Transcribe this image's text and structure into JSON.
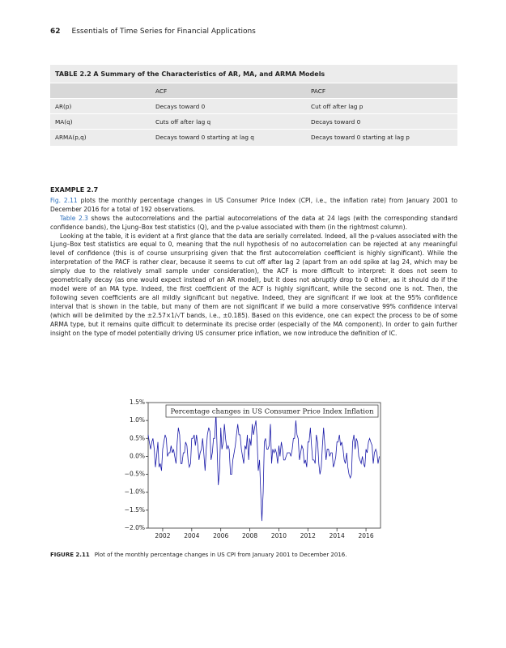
{
  "header": {
    "page_number": "62",
    "running_title": "Essentials of Time Series for Financial Applications"
  },
  "table": {
    "title": "TABLE 2.2 A Summary of the Characteristics of AR, MA, and ARMA Models",
    "columns": [
      "ACF",
      "PACF"
    ],
    "rows": [
      [
        "AR(p)",
        "Decays toward 0",
        "Cut off after lag p"
      ],
      [
        "MA(q)",
        "Cuts off after lag q",
        "Decays toward 0"
      ],
      [
        "ARMA(p,q)",
        "Decays toward 0 starting at lag q",
        "Decays toward 0 starting at lag p"
      ]
    ]
  },
  "example": {
    "heading": "EXAMPLE 2.7",
    "paragraphs": [
      {
        "link": "Fig. 2.11",
        "text": " plots the monthly percentage changes in US Consumer Price Index (CPI, i.e., the inflation rate) from January 2001 to December 2016 for a total of 192 observations."
      },
      {
        "link": "Table 2.3",
        "text": " shows the autocorrelations and the partial autocorrelations of the data at 24 lags (with the corresponding standard confidence bands), the Ljung–Box test statistics (Q), and the p-value associated with them (in the rightmost column)."
      },
      {
        "text": "Looking at the table, it is evident at a first glance that the data are serially correlated. Indeed, all the p-values associated with the Ljung–Box test statistics are equal to 0, meaning that the null hypothesis of no autocorrelation can be rejected at any meaningful level of confidence (this is of course unsurprising given that the first autocorrelation coefficient is highly significant). While the interpretation of the PACF is rather clear, because it seems to cut off after lag 2 (apart from an odd spike at lag 24, which may be simply due to the relatively small sample under consideration), the ACF is more difficult to interpret: it does not seem to geometrically decay (as one would expect instead of an AR model), but it does not abruptly drop to 0 either, as it should do if the model were of an MA type. Indeed, the first coefficient of the ACF is highly significant, while the second one is not. Then, the following seven coefficients are all mildly significant but negative. Indeed, they are significant if we look at the 95% confidence interval that is shown in the table, but many of them are not significant if we build a more conservative 99% confidence interval (which will be delimited by the ±2.57×1/√T bands, i.e., ±0.185). Based on this evidence, one can expect the process to be of some ARMA type, but it remains quite difficult to determinate its precise order (especially of the MA component). In order to gain further insight on the type of model potentially driving US consumer price inflation, we now introduce the definition of IC."
      }
    ]
  },
  "figure": {
    "label": "FIGURE 2.11",
    "caption": "Plot of the monthly percentage changes in US CPI from January 2001 to December 2016."
  },
  "chart_data": {
    "type": "line",
    "title": "Percentage changes in US Consumer Price Index Inflation",
    "color": "#1a1aa8",
    "x": [
      2001,
      2001.08,
      2001.17,
      2001.25,
      2001.33,
      2001.42,
      2001.5,
      2001.58,
      2001.67,
      2001.75,
      2001.83,
      2001.92,
      2002,
      2002.08,
      2002.17,
      2002.25,
      2002.33,
      2002.42,
      2002.5,
      2002.58,
      2002.67,
      2002.75,
      2002.83,
      2002.92,
      2003,
      2003.08,
      2003.17,
      2003.25,
      2003.33,
      2003.42,
      2003.5,
      2003.58,
      2003.67,
      2003.75,
      2003.83,
      2003.92,
      2004,
      2004.08,
      2004.17,
      2004.25,
      2004.33,
      2004.42,
      2004.5,
      2004.58,
      2004.67,
      2004.75,
      2004.83,
      2004.92,
      2005,
      2005.08,
      2005.17,
      2005.25,
      2005.33,
      2005.42,
      2005.5,
      2005.58,
      2005.67,
      2005.75,
      2005.83,
      2005.92,
      2006,
      2006.08,
      2006.17,
      2006.25,
      2006.33,
      2006.42,
      2006.5,
      2006.58,
      2006.67,
      2006.75,
      2006.83,
      2006.92,
      2007,
      2007.08,
      2007.17,
      2007.25,
      2007.33,
      2007.42,
      2007.5,
      2007.58,
      2007.67,
      2007.75,
      2007.83,
      2007.92,
      2008,
      2008.08,
      2008.17,
      2008.25,
      2008.33,
      2008.42,
      2008.5,
      2008.58,
      2008.67,
      2008.75,
      2008.83,
      2008.92,
      2009,
      2009.08,
      2009.17,
      2009.25,
      2009.33,
      2009.42,
      2009.5,
      2009.58,
      2009.67,
      2009.75,
      2009.83,
      2009.92,
      2010,
      2010.08,
      2010.17,
      2010.25,
      2010.33,
      2010.42,
      2010.5,
      2010.58,
      2010.67,
      2010.75,
      2010.83,
      2010.92,
      2011,
      2011.08,
      2011.17,
      2011.25,
      2011.33,
      2011.42,
      2011.5,
      2011.58,
      2011.67,
      2011.75,
      2011.83,
      2011.92,
      2012,
      2012.08,
      2012.17,
      2012.25,
      2012.33,
      2012.42,
      2012.5,
      2012.58,
      2012.67,
      2012.75,
      2012.83,
      2012.92,
      2013,
      2013.08,
      2013.17,
      2013.25,
      2013.33,
      2013.42,
      2013.5,
      2013.58,
      2013.67,
      2013.75,
      2013.83,
      2013.92,
      2014,
      2014.08,
      2014.17,
      2014.25,
      2014.33,
      2014.42,
      2014.5,
      2014.58,
      2014.67,
      2014.75,
      2014.83,
      2014.92,
      2015,
      2015.08,
      2015.17,
      2015.25,
      2015.33,
      2015.42,
      2015.5,
      2015.58,
      2015.67,
      2015.75,
      2015.83,
      2015.92,
      2016,
      2016.08,
      2016.17,
      2016.25,
      2016.33,
      2016.42,
      2016.5,
      2016.58,
      2016.67,
      2016.75,
      2016.83,
      2016.92
    ],
    "values": [
      0.6,
      0.4,
      0.2,
      0.4,
      0.5,
      0.2,
      -0.3,
      0.0,
      0.4,
      -0.3,
      -0.2,
      -0.4,
      0.2,
      0.4,
      0.6,
      0.5,
      0.0,
      0.1,
      0.1,
      0.3,
      0.1,
      0.2,
      0.0,
      -0.2,
      0.4,
      0.8,
      0.6,
      -0.2,
      -0.2,
      0.1,
      0.1,
      0.4,
      0.3,
      -0.1,
      -0.3,
      -0.2,
      0.5,
      0.5,
      0.6,
      0.3,
      0.6,
      0.3,
      -0.1,
      0.1,
      0.2,
      0.5,
      0.1,
      -0.4,
      0.2,
      0.6,
      0.8,
      0.7,
      -0.1,
      0.1,
      0.5,
      0.5,
      1.2,
      0.2,
      -0.8,
      -0.4,
      0.8,
      0.2,
      0.4,
      0.9,
      0.5,
      0.2,
      0.3,
      0.2,
      -0.5,
      -0.5,
      -0.1,
      0.1,
      0.3,
      0.6,
      0.9,
      0.6,
      0.6,
      0.2,
      0.0,
      -0.2,
      0.3,
      0.2,
      0.6,
      -0.1,
      0.5,
      0.3,
      0.9,
      0.6,
      0.8,
      1.0,
      0.5,
      -0.4,
      -0.1,
      -1.0,
      -1.8,
      -1.0,
      0.4,
      0.5,
      0.2,
      0.2,
      0.3,
      0.9,
      -0.2,
      0.2,
      0.1,
      0.2,
      0.1,
      -0.2,
      0.3,
      0.0,
      0.4,
      0.2,
      -0.1,
      -0.1,
      0.0,
      0.1,
      0.1,
      0.1,
      0.0,
      0.2,
      0.5,
      0.5,
      1.0,
      0.6,
      0.5,
      -0.1,
      0.1,
      0.3,
      0.2,
      -0.2,
      -0.1,
      -0.3,
      0.4,
      0.4,
      0.8,
      0.3,
      -0.1,
      -0.1,
      -0.2,
      0.6,
      0.4,
      -0.2,
      -0.5,
      -0.3,
      0.3,
      0.8,
      0.3,
      -0.1,
      0.2,
      0.2,
      0.0,
      0.1,
      0.1,
      -0.3,
      -0.2,
      0.0,
      0.4,
      0.4,
      0.6,
      0.3,
      0.4,
      0.2,
      -0.1,
      -0.2,
      0.1,
      -0.3,
      -0.5,
      -0.6,
      -0.5,
      0.4,
      0.6,
      0.2,
      0.5,
      0.4,
      0.0,
      -0.1,
      -0.2,
      0.0,
      -0.2,
      -0.3,
      0.2,
      0.1,
      0.4,
      0.5,
      0.4,
      0.3,
      -0.2,
      0.1,
      0.2,
      0.1,
      -0.2,
      0.0
    ],
    "xlim": [
      2001,
      2017
    ],
    "xticks": [
      2002,
      2004,
      2006,
      2008,
      2010,
      2012,
      2014,
      2016
    ],
    "ylim": [
      -2,
      1.5
    ],
    "yticks": [
      {
        "value": -2,
        "label": "−2.0%"
      },
      {
        "value": -1.5,
        "label": "−1.5%"
      },
      {
        "value": -1,
        "label": "−1.0%"
      },
      {
        "value": -0.5,
        "label": "−0.5%"
      },
      {
        "value": 0,
        "label": "0.0%"
      },
      {
        "value": 0.5,
        "label": "0.5%"
      },
      {
        "value": 1,
        "label": "1.0%"
      },
      {
        "value": 1.5,
        "label": "1.5%"
      }
    ]
  }
}
